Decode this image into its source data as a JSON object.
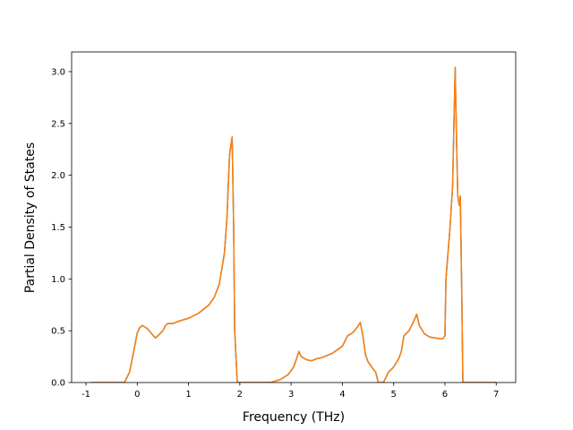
{
  "chart_data": {
    "type": "line",
    "xlabel": "Frequency (THz)",
    "ylabel": "Partial Density of States",
    "x": [
      -0.9,
      -0.25,
      -0.15,
      -0.05,
      0,
      0.05,
      0.1,
      0.2,
      0.3,
      0.35,
      0.4,
      0.5,
      0.55,
      0.6,
      0.7,
      0.8,
      1.0,
      1.2,
      1.4,
      1.5,
      1.6,
      1.7,
      1.75,
      1.8,
      1.85,
      1.88,
      1.9,
      1.95,
      2.6,
      2.8,
      2.95,
      3.05,
      3.1,
      3.15,
      3.2,
      3.3,
      3.4,
      3.5,
      3.6,
      3.8,
      4.0,
      4.1,
      4.2,
      4.3,
      4.35,
      4.4,
      4.45,
      4.5,
      4.6,
      4.65,
      4.7,
      4.8,
      4.9,
      5.0,
      5.1,
      5.15,
      5.2,
      5.3,
      5.4,
      5.45,
      5.5,
      5.6,
      5.7,
      5.8,
      5.95,
      6.0,
      6.02,
      6.1,
      6.15,
      6.18,
      6.2,
      6.22,
      6.25,
      6.28,
      6.3,
      6.33,
      6.35,
      7.0
    ],
    "series": [
      {
        "color": "#1f77b4",
        "values": [
          0,
          0,
          0.1,
          0.35,
          0.48,
          0.53,
          0.55,
          0.52,
          0.46,
          0.43,
          0.45,
          0.5,
          0.55,
          0.57,
          0.57,
          0.59,
          0.62,
          0.67,
          0.75,
          0.82,
          0.95,
          1.25,
          1.6,
          2.2,
          2.37,
          1.5,
          0.5,
          0,
          0,
          0.03,
          0.08,
          0.15,
          0.22,
          0.3,
          0.25,
          0.22,
          0.21,
          0.23,
          0.24,
          0.28,
          0.35,
          0.45,
          0.48,
          0.54,
          0.58,
          0.45,
          0.27,
          0.2,
          0.13,
          0.1,
          0,
          0,
          0.1,
          0.15,
          0.23,
          0.3,
          0.45,
          0.5,
          0.6,
          0.66,
          0.55,
          0.47,
          0.44,
          0.43,
          0.42,
          0.45,
          1.0,
          1.5,
          1.9,
          2.6,
          3.04,
          2.5,
          1.8,
          1.71,
          1.8,
          0.8,
          0,
          0
        ]
      },
      {
        "color": "#ff7f0e",
        "values": [
          0,
          0,
          0.1,
          0.35,
          0.48,
          0.53,
          0.55,
          0.52,
          0.46,
          0.43,
          0.45,
          0.5,
          0.55,
          0.57,
          0.57,
          0.59,
          0.62,
          0.67,
          0.75,
          0.82,
          0.95,
          1.25,
          1.6,
          2.2,
          2.37,
          1.5,
          0.5,
          0,
          0,
          0.03,
          0.08,
          0.15,
          0.22,
          0.3,
          0.25,
          0.22,
          0.21,
          0.23,
          0.24,
          0.28,
          0.35,
          0.45,
          0.48,
          0.54,
          0.58,
          0.45,
          0.27,
          0.2,
          0.13,
          0.1,
          0,
          0,
          0.1,
          0.15,
          0.23,
          0.3,
          0.45,
          0.5,
          0.6,
          0.66,
          0.55,
          0.47,
          0.44,
          0.43,
          0.42,
          0.45,
          1.0,
          1.5,
          1.9,
          2.6,
          3.04,
          2.5,
          1.8,
          1.71,
          1.8,
          0.8,
          0,
          0
        ]
      }
    ],
    "xlim": [
      -1.28,
      7.38
    ],
    "ylim": [
      0,
      3.19
    ],
    "xticks": [
      -1,
      0,
      1,
      2,
      3,
      4,
      5,
      6,
      7
    ],
    "yticks": [
      {
        "value": 0,
        "label": "0.0"
      },
      0.5,
      {
        "value": 1,
        "label": "1.0"
      },
      1.5,
      {
        "value": 2,
        "label": "2.0"
      },
      2.5,
      {
        "value": 3,
        "label": "3.0"
      }
    ],
    "grid": false
  }
}
